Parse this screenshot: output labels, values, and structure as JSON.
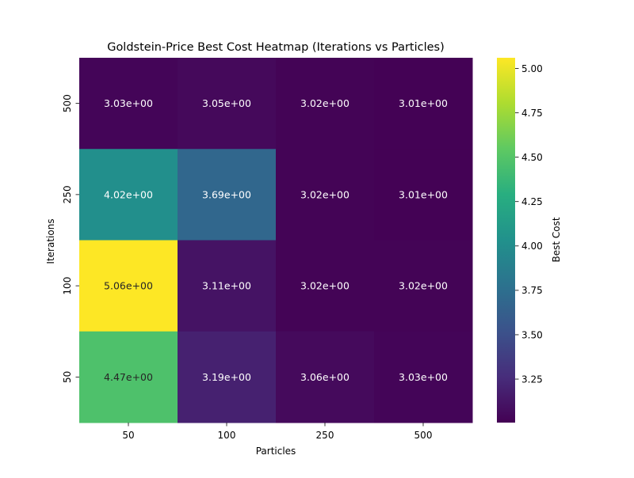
{
  "chart_data": {
    "type": "heatmap",
    "title": "Goldstein-Price Best Cost Heatmap (Iterations vs Particles)",
    "xlabel": "Particles",
    "ylabel": "Iterations",
    "x_categories": [
      "50",
      "100",
      "250",
      "500"
    ],
    "y_categories": [
      "500",
      "250",
      "100",
      "50"
    ],
    "values": [
      [
        3.03,
        3.05,
        3.02,
        3.01
      ],
      [
        4.02,
        3.69,
        3.02,
        3.01
      ],
      [
        5.06,
        3.11,
        3.02,
        3.02
      ],
      [
        4.47,
        3.19,
        3.06,
        3.03
      ]
    ],
    "cell_labels": [
      [
        "3.03e+00",
        "3.05e+00",
        "3.02e+00",
        "3.01e+00"
      ],
      [
        "4.02e+00",
        "3.69e+00",
        "3.02e+00",
        "3.01e+00"
      ],
      [
        "5.06e+00",
        "3.11e+00",
        "3.02e+00",
        "3.02e+00"
      ],
      [
        "4.47e+00",
        "3.19e+00",
        "3.06e+00",
        "3.03e+00"
      ]
    ],
    "colormap": "viridis",
    "colorbar": {
      "label": "Best Cost",
      "vmin": 3.005,
      "vmax": 5.06,
      "ticks": [
        3.25,
        3.5,
        3.75,
        4.0,
        4.25,
        4.5,
        4.75,
        5.0
      ],
      "tick_labels": [
        "3.25",
        "3.50",
        "3.75",
        "4.00",
        "4.25",
        "4.50",
        "4.75",
        "5.00"
      ]
    }
  }
}
